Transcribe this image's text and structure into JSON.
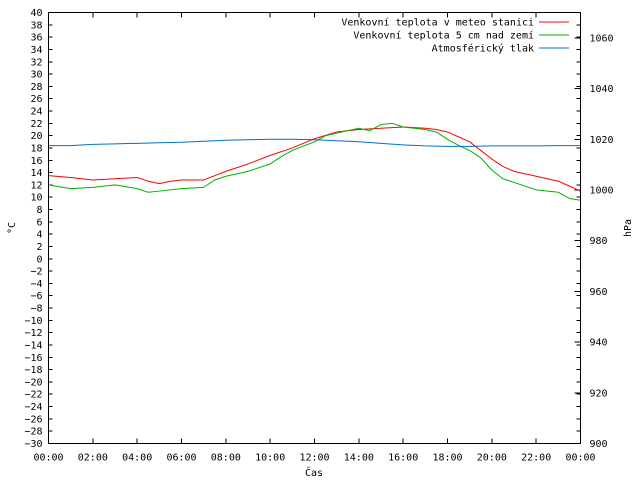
{
  "chart_data": {
    "type": "line",
    "title": "",
    "xlabel": "Čas",
    "ylabel_left": "°C",
    "ylabel_right": "hPa",
    "x_ticks": [
      "00:00",
      "02:00",
      "04:00",
      "06:00",
      "08:00",
      "10:00",
      "12:00",
      "14:00",
      "16:00",
      "18:00",
      "20:00",
      "22:00",
      "00:00"
    ],
    "x_range_hours": [
      0,
      24
    ],
    "y_left_range": [
      -30,
      40
    ],
    "y_left_tick_step": 2,
    "y_right_range": [
      900,
      1070
    ],
    "y_right_ticks": [
      900,
      920,
      940,
      960,
      980,
      1000,
      1020,
      1040,
      1060
    ],
    "grid": false,
    "legend_position": "top-right",
    "series": [
      {
        "name": "Venkovní teplota v meteo stanici",
        "color": "#ff0000",
        "axis": "left",
        "points": [
          [
            0,
            13.5
          ],
          [
            1,
            13.2
          ],
          [
            2,
            12.8
          ],
          [
            3,
            13.0
          ],
          [
            4,
            13.2
          ],
          [
            4.5,
            12.6
          ],
          [
            5,
            12.2
          ],
          [
            5.5,
            12.6
          ],
          [
            6,
            12.8
          ],
          [
            7,
            12.8
          ],
          [
            7.5,
            13.5
          ],
          [
            8,
            14.2
          ],
          [
            9,
            15.4
          ],
          [
            10,
            16.8
          ],
          [
            11,
            18.0
          ],
          [
            12,
            19.5
          ],
          [
            13,
            20.6
          ],
          [
            14,
            21.0
          ],
          [
            15,
            21.2
          ],
          [
            16,
            21.4
          ],
          [
            17,
            21.2
          ],
          [
            17.5,
            21.0
          ],
          [
            18,
            20.6
          ],
          [
            18.5,
            19.8
          ],
          [
            19,
            19.0
          ],
          [
            19.5,
            17.6
          ],
          [
            20,
            16.2
          ],
          [
            20.5,
            15.0
          ],
          [
            21,
            14.2
          ],
          [
            22,
            13.4
          ],
          [
            23,
            12.6
          ],
          [
            23.5,
            11.8
          ],
          [
            24,
            11.0
          ]
        ]
      },
      {
        "name": "Venkovní teplota 5 cm nad zemí",
        "color": "#00b000",
        "axis": "left",
        "points": [
          [
            0,
            12.0
          ],
          [
            1,
            11.4
          ],
          [
            2,
            11.6
          ],
          [
            3,
            12.0
          ],
          [
            4,
            11.4
          ],
          [
            4.5,
            10.8
          ],
          [
            5,
            11.0
          ],
          [
            6,
            11.4
          ],
          [
            7,
            11.6
          ],
          [
            7.5,
            12.8
          ],
          [
            8,
            13.4
          ],
          [
            9,
            14.2
          ],
          [
            10,
            15.4
          ],
          [
            10.5,
            16.6
          ],
          [
            11,
            17.6
          ],
          [
            12,
            19.0
          ],
          [
            12.5,
            20.0
          ],
          [
            13,
            20.4
          ],
          [
            14,
            21.2
          ],
          [
            14.5,
            20.8
          ],
          [
            15,
            21.8
          ],
          [
            15.5,
            22.0
          ],
          [
            16,
            21.4
          ],
          [
            16.5,
            21.2
          ],
          [
            17,
            21.0
          ],
          [
            17.5,
            20.6
          ],
          [
            18,
            19.4
          ],
          [
            18.5,
            18.4
          ],
          [
            19,
            17.6
          ],
          [
            19.5,
            16.4
          ],
          [
            20,
            14.4
          ],
          [
            20.5,
            13.0
          ],
          [
            21,
            12.4
          ],
          [
            22,
            11.2
          ],
          [
            23,
            10.8
          ],
          [
            23.5,
            9.8
          ],
          [
            24,
            9.5
          ]
        ]
      },
      {
        "name": "Atmosférický tlak",
        "color": "#0070d0",
        "axis": "right",
        "points": [
          [
            0,
            1017.5
          ],
          [
            1,
            1017.5
          ],
          [
            2,
            1018.0
          ],
          [
            3,
            1018.2
          ],
          [
            4,
            1018.4
          ],
          [
            5,
            1018.6
          ],
          [
            6,
            1018.8
          ],
          [
            7,
            1019.2
          ],
          [
            8,
            1019.6
          ],
          [
            9,
            1019.8
          ],
          [
            10,
            1020.0
          ],
          [
            11,
            1020.0
          ],
          [
            12,
            1019.8
          ],
          [
            13,
            1019.4
          ],
          [
            14,
            1019.0
          ],
          [
            15,
            1018.4
          ],
          [
            16,
            1017.8
          ],
          [
            17,
            1017.4
          ],
          [
            18,
            1017.2
          ],
          [
            19,
            1017.2
          ],
          [
            20,
            1017.4
          ],
          [
            21,
            1017.4
          ],
          [
            22,
            1017.4
          ],
          [
            23,
            1017.5
          ],
          [
            24,
            1017.5
          ]
        ]
      }
    ]
  }
}
